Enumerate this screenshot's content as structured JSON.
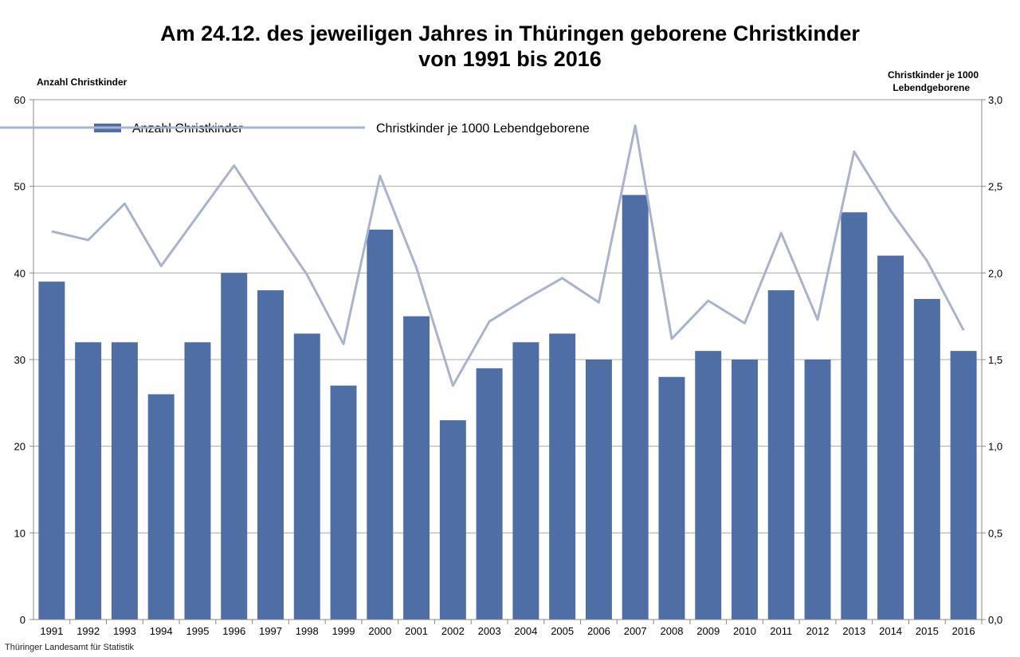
{
  "chart_data": {
    "type": "bar",
    "title": "Am 24.12. des jeweiligen Jahres in Thüringen geborene Christkinder",
    "subtitle": "von 1991 bis 2016",
    "ylabel": "Anzahl Christkinder",
    "y2label_line1": "Christkinder  je 1000",
    "y2label_line2": "Lebendgeborene",
    "ylim": [
      0,
      60
    ],
    "y2lim": [
      0,
      3
    ],
    "yticks": [
      "0",
      "10",
      "20",
      "30",
      "40",
      "50",
      "60"
    ],
    "y2ticks": [
      "0,0",
      "0,5",
      "1,0",
      "1,5",
      "2,0",
      "2,5",
      "3,0"
    ],
    "grid": true,
    "legend_placement": "top-left",
    "categories": [
      "1991",
      "1992",
      "1993",
      "1994",
      "1995",
      "1996",
      "1997",
      "1998",
      "1999",
      "2000",
      "2001",
      "2002",
      "2003",
      "2004",
      "2005",
      "2006",
      "2007",
      "2008",
      "2009",
      "2010",
      "2011",
      "2012",
      "2013",
      "2014",
      "2015",
      "2016"
    ],
    "series": [
      {
        "name": "Anzahl Christkinder",
        "type": "bar",
        "axis": "left",
        "color": "#4f6ea6",
        "values": [
          39,
          32,
          32,
          26,
          32,
          40,
          38,
          33,
          27,
          45,
          35,
          23,
          29,
          32,
          33,
          30,
          49,
          28,
          31,
          30,
          38,
          30,
          47,
          42,
          37,
          31
        ]
      },
      {
        "name": "Christkinder je 1000 Lebendgeborene",
        "type": "line",
        "axis": "right",
        "color": "#a9b4cc",
        "values": [
          2.24,
          2.19,
          2.4,
          2.04,
          2.33,
          2.62,
          2.3,
          1.99,
          1.59,
          2.56,
          2.03,
          1.35,
          1.72,
          1.85,
          1.97,
          1.83,
          2.85,
          1.62,
          1.84,
          1.71,
          2.23,
          1.73,
          2.7,
          2.36,
          2.07,
          1.67
        ]
      }
    ]
  },
  "source": "Thüringer Landesamt für Statistik"
}
